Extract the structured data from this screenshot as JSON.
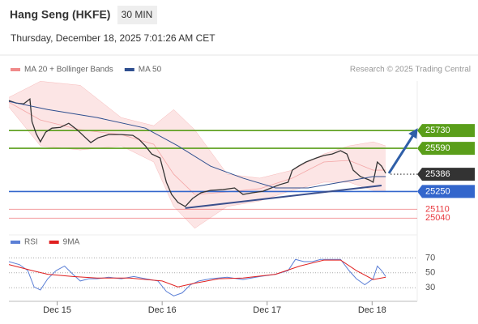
{
  "header": {
    "title": "Hang Seng (HKFE)",
    "timeframe": "30 MIN",
    "datetime": "Thursday, December 18, 2025 7:01:26 AM CET",
    "source": "Research © 2025 Trading Central"
  },
  "chart_data": [
    {
      "type": "line",
      "xlim": [
        -0.46,
        3.43
      ],
      "ylim": [
        24940,
        26120
      ],
      "series": [
        {
          "color": "#333333",
          "x": [
            -0.46,
            -0.39,
            -0.32,
            -0.26,
            -0.24,
            -0.2,
            -0.16,
            -0.11,
            -0.05,
            0.03,
            0.11,
            0.19,
            0.27,
            0.32,
            0.39,
            0.49,
            0.61,
            0.72,
            0.78,
            0.84,
            0.9,
            0.98,
            1.04,
            1.09,
            1.15,
            1.22,
            1.29,
            1.37,
            1.46,
            1.58,
            1.69,
            1.77,
            1.86,
            1.96,
            2.04,
            2.12,
            2.2,
            2.24,
            2.3,
            2.37,
            2.47,
            2.54,
            2.62,
            2.7,
            2.76,
            2.82,
            2.89,
            2.97,
            3.01,
            3.05,
            3.09,
            3.13
          ],
          "values": [
            25965,
            25946,
            25940,
            25978,
            25800,
            25705,
            25641,
            25717,
            25749,
            25755,
            25787,
            25736,
            25673,
            25635,
            25673,
            25698,
            25698,
            25692,
            25660,
            25609,
            25545,
            25514,
            25323,
            25227,
            25164,
            25132,
            25195,
            25240,
            25259,
            25265,
            25278,
            25227,
            25240,
            25252,
            25278,
            25304,
            25323,
            25418,
            25450,
            25482,
            25514,
            25533,
            25545,
            25571,
            25545,
            25418,
            25367,
            25342,
            25323,
            25482,
            25450,
            25393
          ]
        },
        {
          "name": "MA 50",
          "color": "#2f4f8f",
          "x": [
            -0.46,
            -0.09,
            0.38,
            0.84,
            1.15,
            1.46,
            1.77,
            2.08,
            2.39,
            2.7,
            3.01,
            3.13
          ],
          "values": [
            25959,
            25895,
            25832,
            25749,
            25609,
            25450,
            25355,
            25278,
            25278,
            25323,
            25367,
            25367
          ]
        }
      ],
      "bands": {
        "name": "MA 20 + Bollinger Bands",
        "color": "#f08a8a",
        "x": [
          -0.46,
          -0.16,
          0.22,
          0.61,
          0.92,
          1.11,
          1.31,
          1.62,
          1.93,
          2.24,
          2.54,
          2.78,
          3.01,
          3.13
        ],
        "upper": [
          25991,
          26118,
          26086,
          25832,
          25768,
          25895,
          25736,
          25386,
          25355,
          25418,
          25545,
          25609,
          25641,
          25609
        ],
        "middle": [
          25953,
          25813,
          25736,
          25698,
          25622,
          25386,
          25227,
          25246,
          25272,
          25355,
          25482,
          25495,
          25418,
          25418
        ],
        "lower": [
          25915,
          25609,
          25577,
          25609,
          25482,
          25132,
          24960,
          25132,
          25176,
          25259,
          25323,
          25323,
          25259,
          25259
        ]
      },
      "levels": [
        {
          "value": 25730,
          "color": "#5a9e1a",
          "label_box": true
        },
        {
          "value": 25590,
          "color": "#5a9e1a",
          "label_box": true
        },
        {
          "value": 25386,
          "color": "#333333",
          "label_box": true,
          "line": "dotted"
        },
        {
          "value": 25250,
          "color": "#3366cc",
          "label_box": true
        },
        {
          "value": 25110,
          "color": "#e8393f",
          "label_box": false
        },
        {
          "value": 25040,
          "color": "#e8393f",
          "label_box": false
        }
      ],
      "trendline": {
        "color": "#3a4f8c",
        "x": [
          1.22,
          3.09
        ],
        "values": [
          25119,
          25297
        ]
      },
      "arrow": {
        "color": "#2f5fa8",
        "x": [
          3.16,
          3.41
        ],
        "values": [
          25393,
          25717
        ]
      }
    },
    {
      "type": "line",
      "xlim": [
        -0.46,
        3.43
      ],
      "ylim": [
        15,
        78
      ],
      "yticks": [
        30,
        50,
        70
      ],
      "xticks": [
        {
          "value": 0,
          "label": "Dec 15"
        },
        {
          "value": 1,
          "label": "Dec 16"
        },
        {
          "value": 2,
          "label": "Dec 17"
        },
        {
          "value": 3,
          "label": "Dec 18"
        }
      ],
      "series": [
        {
          "name": "RSI",
          "color": "#5b7fd6",
          "x": [
            -0.46,
            -0.36,
            -0.28,
            -0.22,
            -0.16,
            -0.09,
            -0.01,
            0.07,
            0.15,
            0.22,
            0.3,
            0.38,
            0.49,
            0.61,
            0.73,
            0.84,
            0.96,
            1.04,
            1.11,
            1.19,
            1.27,
            1.35,
            1.46,
            1.62,
            1.77,
            1.93,
            2.08,
            2.2,
            2.27,
            2.35,
            2.43,
            2.51,
            2.62,
            2.7,
            2.78,
            2.85,
            2.93,
            3.01,
            3.05,
            3.09,
            3.13
          ],
          "values": [
            65,
            61,
            53,
            31,
            27,
            42,
            53,
            59,
            48,
            39,
            42,
            42,
            44,
            42,
            45,
            42,
            39,
            25,
            19,
            23,
            34,
            39,
            42,
            44,
            41,
            45,
            48,
            53,
            68,
            65,
            65,
            68,
            68,
            68,
            53,
            42,
            34,
            42,
            59,
            53,
            45
          ]
        },
        {
          "name": "9MA",
          "color": "#e02020",
          "x": [
            -0.46,
            -0.24,
            -0.09,
            0.15,
            0.38,
            0.69,
            1.0,
            1.15,
            1.31,
            1.54,
            1.77,
            2.08,
            2.31,
            2.54,
            2.7,
            2.85,
            3.01,
            3.13
          ],
          "values": [
            61,
            53,
            48,
            45,
            43,
            43,
            39,
            31,
            36,
            42,
            43,
            48,
            59,
            67,
            67,
            53,
            41,
            44
          ]
        }
      ]
    }
  ]
}
